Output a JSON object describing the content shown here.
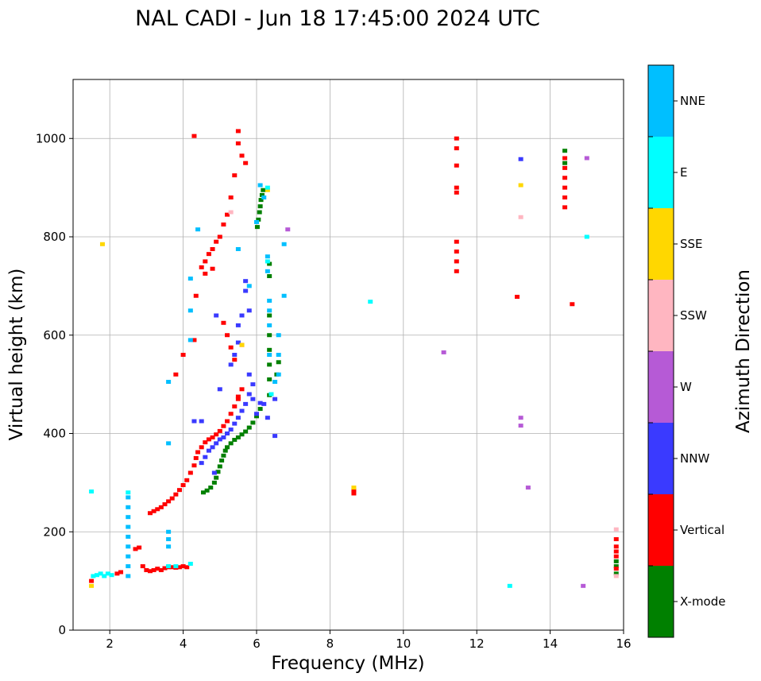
{
  "chart_data": {
    "type": "scatter",
    "title": "NAL CADI - Jun 18 17:45:00 2024 UTC",
    "xlabel": "Frequency (MHz)",
    "ylabel": "Virtual height (km)",
    "xlim": [
      1,
      16
    ],
    "ylim": [
      0,
      1120
    ],
    "xticks": [
      "2",
      "4",
      "6",
      "8",
      "10",
      "12",
      "14",
      "16"
    ],
    "yticks": [
      "0",
      "200",
      "400",
      "600",
      "800",
      "1000"
    ],
    "grid": true,
    "colorbar": {
      "label": "Azimuth Direction",
      "categories": [
        {
          "name": "X-mode",
          "color": "#008000"
        },
        {
          "name": "Vertical",
          "color": "#ff0000"
        },
        {
          "name": "NNW",
          "color": "#3a3aff"
        },
        {
          "name": "W",
          "color": "#b65ad6"
        },
        {
          "name": "SSW",
          "color": "#ffb6c1"
        },
        {
          "name": "SSE",
          "color": "#ffd700"
        },
        {
          "name": "E",
          "color": "#00ffff"
        },
        {
          "name": "NNE",
          "color": "#00bfff"
        }
      ]
    },
    "series": [
      {
        "name": "X-mode",
        "points": [
          [
            4.55,
            280
          ],
          [
            4.65,
            284
          ],
          [
            4.75,
            290
          ],
          [
            4.85,
            300
          ],
          [
            4.9,
            310
          ],
          [
            4.95,
            322
          ],
          [
            5.0,
            333
          ],
          [
            5.05,
            345
          ],
          [
            5.1,
            355
          ],
          [
            5.15,
            365
          ],
          [
            5.2,
            372
          ],
          [
            5.3,
            380
          ],
          [
            5.4,
            387
          ],
          [
            5.5,
            392
          ],
          [
            5.6,
            398
          ],
          [
            5.7,
            404
          ],
          [
            5.8,
            412
          ],
          [
            5.9,
            422
          ],
          [
            6.0,
            435
          ],
          [
            6.1,
            450
          ],
          [
            6.02,
            820
          ],
          [
            6.05,
            835
          ],
          [
            6.08,
            850
          ],
          [
            6.1,
            862
          ],
          [
            6.12,
            875
          ],
          [
            6.15,
            885
          ],
          [
            6.18,
            895
          ],
          [
            6.35,
            478
          ],
          [
            6.35,
            510
          ],
          [
            6.35,
            540
          ],
          [
            6.35,
            570
          ],
          [
            6.35,
            600
          ],
          [
            6.35,
            640
          ],
          [
            6.35,
            720
          ],
          [
            6.35,
            745
          ],
          [
            6.55,
            520
          ],
          [
            6.6,
            545
          ],
          [
            14.4,
            975
          ],
          [
            14.4,
            950
          ],
          [
            15.8,
            130
          ],
          [
            15.8,
            115
          ],
          [
            15.8,
            140
          ]
        ]
      },
      {
        "name": "Vertical",
        "points": [
          [
            1.5,
            100
          ],
          [
            2.2,
            115
          ],
          [
            2.3,
            118
          ],
          [
            2.7,
            165
          ],
          [
            2.8,
            168
          ],
          [
            2.9,
            130
          ],
          [
            3.0,
            122
          ],
          [
            3.1,
            120
          ],
          [
            3.2,
            122
          ],
          [
            3.3,
            125
          ],
          [
            3.4,
            122
          ],
          [
            3.5,
            126
          ],
          [
            3.6,
            128
          ],
          [
            3.7,
            128
          ],
          [
            3.8,
            127
          ],
          [
            3.9,
            128
          ],
          [
            4.0,
            130
          ],
          [
            4.1,
            128
          ],
          [
            3.1,
            238
          ],
          [
            3.2,
            242
          ],
          [
            3.3,
            246
          ],
          [
            3.4,
            250
          ],
          [
            3.5,
            256
          ],
          [
            3.6,
            262
          ],
          [
            3.7,
            268
          ],
          [
            3.8,
            276
          ],
          [
            3.9,
            285
          ],
          [
            4.0,
            295
          ],
          [
            4.1,
            305
          ],
          [
            4.2,
            320
          ],
          [
            4.3,
            335
          ],
          [
            4.35,
            350
          ],
          [
            4.4,
            362
          ],
          [
            4.5,
            372
          ],
          [
            4.6,
            382
          ],
          [
            4.7,
            388
          ],
          [
            4.8,
            392
          ],
          [
            4.9,
            398
          ],
          [
            5.0,
            405
          ],
          [
            5.1,
            415
          ],
          [
            5.2,
            425
          ],
          [
            5.3,
            440
          ],
          [
            5.4,
            455
          ],
          [
            5.5,
            470
          ],
          [
            5.6,
            490
          ],
          [
            4.3,
            1005
          ],
          [
            4.5,
            738
          ],
          [
            4.6,
            750
          ],
          [
            4.7,
            765
          ],
          [
            4.8,
            775
          ],
          [
            4.9,
            790
          ],
          [
            5.0,
            800
          ],
          [
            5.1,
            825
          ],
          [
            5.2,
            845
          ],
          [
            5.3,
            880
          ],
          [
            5.4,
            925
          ],
          [
            5.5,
            990
          ],
          [
            5.5,
            1015
          ],
          [
            5.6,
            965
          ],
          [
            5.7,
            950
          ],
          [
            4.35,
            680
          ],
          [
            4.6,
            725
          ],
          [
            4.8,
            735
          ],
          [
            5.1,
            625
          ],
          [
            5.2,
            600
          ],
          [
            5.3,
            575
          ],
          [
            5.4,
            550
          ],
          [
            5.5,
            475
          ],
          [
            5.6,
            580
          ],
          [
            4.0,
            560
          ],
          [
            3.8,
            520
          ],
          [
            4.3,
            590
          ],
          [
            8.65,
            285
          ],
          [
            8.65,
            278
          ],
          [
            11.45,
            1000
          ],
          [
            11.45,
            980
          ],
          [
            11.45,
            900
          ],
          [
            11.45,
            890
          ],
          [
            11.45,
            790
          ],
          [
            11.45,
            770
          ],
          [
            11.45,
            750
          ],
          [
            11.45,
            730
          ],
          [
            11.45,
            945
          ],
          [
            13.1,
            678
          ],
          [
            14.4,
            960
          ],
          [
            14.4,
            940
          ],
          [
            14.4,
            920
          ],
          [
            14.4,
            900
          ],
          [
            14.4,
            880
          ],
          [
            14.4,
            860
          ],
          [
            14.6,
            663
          ],
          [
            15.8,
            185
          ],
          [
            15.8,
            170
          ],
          [
            15.8,
            160
          ],
          [
            15.8,
            150
          ],
          [
            15.8,
            125
          ]
        ]
      },
      {
        "name": "NNW",
        "points": [
          [
            4.5,
            340
          ],
          [
            4.6,
            352
          ],
          [
            4.7,
            365
          ],
          [
            4.8,
            372
          ],
          [
            4.9,
            380
          ],
          [
            5.0,
            388
          ],
          [
            5.1,
            392
          ],
          [
            5.2,
            400
          ],
          [
            5.3,
            408
          ],
          [
            5.4,
            420
          ],
          [
            5.5,
            432
          ],
          [
            5.6,
            446
          ],
          [
            5.7,
            460
          ],
          [
            5.8,
            480
          ],
          [
            5.9,
            500
          ],
          [
            6.0,
            440
          ],
          [
            6.1,
            462
          ],
          [
            6.3,
            432
          ],
          [
            6.5,
            470
          ],
          [
            4.3,
            425
          ],
          [
            4.5,
            425
          ],
          [
            5.0,
            490
          ],
          [
            5.3,
            540
          ],
          [
            5.4,
            560
          ],
          [
            5.5,
            585
          ],
          [
            5.5,
            620
          ],
          [
            5.6,
            640
          ],
          [
            5.7,
            690
          ],
          [
            5.7,
            710
          ],
          [
            5.8,
            650
          ],
          [
            5.8,
            520
          ],
          [
            5.9,
            470
          ],
          [
            4.9,
            640
          ],
          [
            4.85,
            320
          ],
          [
            6.2,
            460
          ],
          [
            6.5,
            395
          ],
          [
            13.2,
            958
          ]
        ]
      },
      {
        "name": "W",
        "points": [
          [
            13.2,
            432
          ],
          [
            13.2,
            416
          ],
          [
            13.4,
            290
          ],
          [
            14.9,
            90
          ],
          [
            15.0,
            960
          ],
          [
            11.1,
            565
          ],
          [
            6.85,
            815
          ]
        ]
      },
      {
        "name": "SSW",
        "points": [
          [
            13.2,
            840
          ],
          [
            15.8,
            205
          ],
          [
            15.8,
            110
          ],
          [
            5.3,
            850
          ]
        ]
      },
      {
        "name": "SSE",
        "points": [
          [
            1.8,
            785
          ],
          [
            1.5,
            90
          ],
          [
            13.2,
            905
          ],
          [
            5.6,
            580
          ],
          [
            8.65,
            290
          ],
          [
            6.3,
            895
          ]
        ]
      },
      {
        "name": "E",
        "points": [
          [
            1.55,
            110
          ],
          [
            1.65,
            112
          ],
          [
            1.75,
            115
          ],
          [
            1.85,
            110
          ],
          [
            1.95,
            115
          ],
          [
            2.05,
            112
          ],
          [
            3.6,
            130
          ],
          [
            3.8,
            130
          ],
          [
            4.2,
            135
          ],
          [
            12.9,
            90
          ],
          [
            15.0,
            800
          ],
          [
            9.1,
            668
          ],
          [
            6.4,
            480
          ],
          [
            6.3,
            900
          ],
          [
            6.3,
            750
          ],
          [
            1.5,
            282
          ],
          [
            2.5,
            280
          ]
        ]
      },
      {
        "name": "NNE",
        "points": [
          [
            2.5,
            270
          ],
          [
            2.5,
            250
          ],
          [
            2.5,
            230
          ],
          [
            2.5,
            210
          ],
          [
            2.5,
            190
          ],
          [
            2.5,
            170
          ],
          [
            2.5,
            150
          ],
          [
            2.5,
            130
          ],
          [
            2.5,
            110
          ],
          [
            3.6,
            200
          ],
          [
            3.6,
            185
          ],
          [
            3.6,
            170
          ],
          [
            3.6,
            380
          ],
          [
            3.6,
            505
          ],
          [
            4.2,
            715
          ],
          [
            4.2,
            650
          ],
          [
            4.2,
            590
          ],
          [
            4.4,
            815
          ],
          [
            6.3,
            760
          ],
          [
            6.3,
            730
          ],
          [
            6.35,
            670
          ],
          [
            6.35,
            650
          ],
          [
            6.35,
            620
          ],
          [
            6.35,
            560
          ],
          [
            6.6,
            600
          ],
          [
            6.6,
            560
          ],
          [
            6.6,
            520
          ],
          [
            6.5,
            505
          ],
          [
            6.75,
            785
          ],
          [
            6.75,
            680
          ],
          [
            6.1,
            905
          ],
          [
            6.2,
            880
          ],
          [
            6.0,
            830
          ],
          [
            5.8,
            700
          ],
          [
            5.5,
            775
          ]
        ]
      }
    ]
  }
}
